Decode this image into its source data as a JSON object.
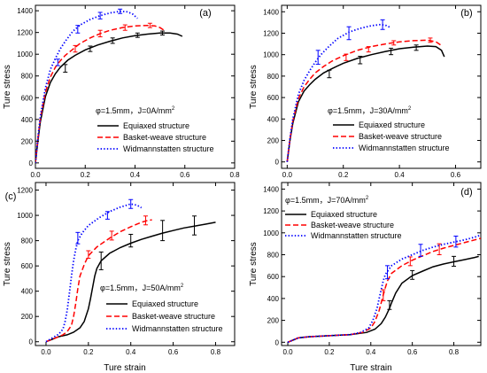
{
  "figure": {
    "x_axis_title": "Ture strain",
    "y_axis_title": "Ture stress"
  },
  "chart_data": [
    {
      "type": "line",
      "panel_label": "(a)",
      "condition": {
        "text": "φ=1.5mm，J=0A/mm",
        "sup": "2"
      },
      "xlim": [
        0,
        0.8
      ],
      "ylim": [
        -50,
        1450
      ],
      "xticks": [
        0.0,
        0.2,
        0.4,
        0.6,
        0.8
      ],
      "yticks": [
        0,
        200,
        400,
        600,
        800,
        1000,
        1200,
        1400
      ],
      "xtick_labels": [
        "0.0",
        "0.2",
        "0.4",
        "0.6",
        "0.8"
      ],
      "ytick_labels": [
        "0",
        "200",
        "400",
        "600",
        "800",
        "1000",
        "1200",
        "1400"
      ],
      "xlabel": "",
      "ylabel": "Ture stress",
      "legend_position": "lower-right",
      "series": [
        {
          "name": "Equiaxed structure",
          "color": "#000000",
          "dash": "solid",
          "x": [
            0,
            0.01,
            0.02,
            0.04,
            0.06,
            0.08,
            0.1,
            0.13,
            0.16,
            0.2,
            0.25,
            0.3,
            0.35,
            0.4,
            0.45,
            0.5,
            0.54,
            0.57,
            0.59
          ],
          "y": [
            0,
            200,
            380,
            610,
            740,
            820,
            880,
            945,
            990,
            1040,
            1085,
            1120,
            1150,
            1170,
            1185,
            1195,
            1195,
            1185,
            1165
          ],
          "errorbars": [
            {
              "x": 0.12,
              "y": 870,
              "err": 35
            },
            {
              "x": 0.22,
              "y": 1050,
              "err": 25
            },
            {
              "x": 0.31,
              "y": 1125,
              "err": 25
            },
            {
              "x": 0.41,
              "y": 1175,
              "err": 20
            },
            {
              "x": 0.51,
              "y": 1195,
              "err": 18
            }
          ]
        },
        {
          "name": "Basket-weave structure",
          "color": "#ff0000",
          "dash": "dashed",
          "x": [
            0,
            0.01,
            0.02,
            0.04,
            0.06,
            0.08,
            0.1,
            0.12,
            0.15,
            0.18,
            0.22,
            0.26,
            0.3,
            0.35,
            0.4,
            0.45,
            0.48,
            0.5,
            0.52
          ],
          "y": [
            0,
            220,
            410,
            650,
            790,
            880,
            940,
            990,
            1045,
            1100,
            1150,
            1190,
            1220,
            1245,
            1260,
            1265,
            1260,
            1245,
            1215
          ],
          "errorbars": [
            {
              "x": 0.16,
              "y": 1050,
              "err": 30
            },
            {
              "x": 0.26,
              "y": 1190,
              "err": 30
            },
            {
              "x": 0.36,
              "y": 1245,
              "err": 25
            },
            {
              "x": 0.46,
              "y": 1265,
              "err": 20
            }
          ]
        },
        {
          "name": "Widmannstatten structure",
          "color": "#0000ff",
          "dash": "dotted",
          "x": [
            0,
            0.01,
            0.02,
            0.04,
            0.06,
            0.08,
            0.1,
            0.12,
            0.15,
            0.18,
            0.22,
            0.26,
            0.3,
            0.34,
            0.37,
            0.39,
            0.41
          ],
          "y": [
            0,
            230,
            430,
            690,
            860,
            960,
            1050,
            1120,
            1210,
            1270,
            1320,
            1355,
            1380,
            1395,
            1390,
            1370,
            1330
          ],
          "errorbars": [
            {
              "x": 0.09,
              "y": 925,
              "err": 30
            },
            {
              "x": 0.17,
              "y": 1230,
              "err": 35
            },
            {
              "x": 0.26,
              "y": 1355,
              "err": 30
            },
            {
              "x": 0.34,
              "y": 1395,
              "err": 20
            }
          ]
        }
      ]
    },
    {
      "type": "line",
      "panel_label": "(b)",
      "condition": {
        "text": "φ=1.5mm，J=30A/mm",
        "sup": "2"
      },
      "xlim": [
        -0.02,
        0.69
      ],
      "ylim": [
        -60,
        1460
      ],
      "xticks": [
        0.0,
        0.2,
        0.4,
        0.6
      ],
      "yticks": [
        0,
        200,
        400,
        600,
        800,
        1000,
        1200,
        1400
      ],
      "xtick_labels": [
        "0.0",
        "0.2",
        "0.4",
        "0.6"
      ],
      "ytick_labels": [
        "0",
        "200",
        "400",
        "600",
        "800",
        "1000",
        "1200",
        "1400"
      ],
      "xlabel": "",
      "ylabel": "Ture stress",
      "legend_position": "lower-right",
      "series": [
        {
          "name": "Equiaxed structure",
          "color": "#000000",
          "dash": "solid",
          "x": [
            0,
            0.01,
            0.02,
            0.04,
            0.06,
            0.08,
            0.1,
            0.13,
            0.16,
            0.2,
            0.25,
            0.3,
            0.35,
            0.4,
            0.45,
            0.5,
            0.53,
            0.55,
            0.56
          ],
          "y": [
            0,
            200,
            360,
            560,
            660,
            720,
            770,
            830,
            870,
            920,
            965,
            1000,
            1030,
            1055,
            1070,
            1080,
            1075,
            1040,
            980
          ],
          "errorbars": [
            {
              "x": 0.15,
              "y": 820,
              "err": 35
            },
            {
              "x": 0.26,
              "y": 950,
              "err": 35
            },
            {
              "x": 0.37,
              "y": 1030,
              "err": 30
            },
            {
              "x": 0.46,
              "y": 1065,
              "err": 25
            }
          ]
        },
        {
          "name": "Basket-weave structure",
          "color": "#ff0000",
          "dash": "dashed",
          "x": [
            0,
            0.01,
            0.02,
            0.04,
            0.06,
            0.08,
            0.1,
            0.13,
            0.16,
            0.2,
            0.25,
            0.3,
            0.35,
            0.4,
            0.45,
            0.5,
            0.53,
            0.55
          ],
          "y": [
            0,
            210,
            380,
            590,
            700,
            770,
            830,
            890,
            940,
            990,
            1040,
            1075,
            1100,
            1120,
            1130,
            1135,
            1120,
            1085
          ],
          "errorbars": [
            {
              "x": 0.21,
              "y": 975,
              "err": 30
            },
            {
              "x": 0.29,
              "y": 1050,
              "err": 25
            },
            {
              "x": 0.38,
              "y": 1110,
              "err": 20
            },
            {
              "x": 0.51,
              "y": 1135,
              "err": 20
            }
          ]
        },
        {
          "name": "Widmannstatten structure",
          "color": "#0000ff",
          "dash": "dotted",
          "x": [
            0,
            0.01,
            0.02,
            0.04,
            0.06,
            0.08,
            0.1,
            0.12,
            0.15,
            0.18,
            0.22,
            0.26,
            0.3,
            0.33,
            0.35,
            0.37
          ],
          "y": [
            0,
            220,
            400,
            630,
            760,
            850,
            930,
            1000,
            1080,
            1150,
            1210,
            1245,
            1270,
            1280,
            1275,
            1250
          ],
          "errorbars": [
            {
              "x": 0.11,
              "y": 975,
              "err": 65
            },
            {
              "x": 0.22,
              "y": 1200,
              "err": 60
            },
            {
              "x": 0.34,
              "y": 1280,
              "err": 45
            }
          ]
        }
      ]
    },
    {
      "type": "line",
      "panel_label": "(c)",
      "condition": {
        "text": "φ=1.5mm，J=50A/mm",
        "sup": "2"
      },
      "xlim": [
        -0.05,
        0.89
      ],
      "ylim": [
        -30,
        1260
      ],
      "xticks": [
        0.0,
        0.2,
        0.4,
        0.6,
        0.8
      ],
      "yticks": [
        0,
        200,
        400,
        600,
        800,
        1000,
        1200
      ],
      "xtick_labels": [
        "0.0",
        "0.2",
        "0.4",
        "0.6",
        "0.8"
      ],
      "ytick_labels": [
        "0",
        "200",
        "400",
        "600",
        "800",
        "1000",
        "1200"
      ],
      "xlabel": "",
      "ylabel": "Ture stress",
      "legend_position": "lower-right",
      "series": [
        {
          "name": "Equiaxed structure",
          "color": "#000000",
          "dash": "solid",
          "x": [
            0,
            0.03,
            0.06,
            0.1,
            0.13,
            0.16,
            0.18,
            0.2,
            0.21,
            0.22,
            0.23,
            0.24,
            0.26,
            0.3,
            0.35,
            0.4,
            0.45,
            0.5,
            0.55,
            0.6,
            0.65,
            0.7,
            0.75,
            0.8
          ],
          "y": [
            0,
            20,
            40,
            55,
            75,
            110,
            160,
            260,
            340,
            430,
            520,
            580,
            640,
            700,
            745,
            780,
            810,
            835,
            860,
            880,
            900,
            915,
            930,
            945
          ],
          "errorbars": [
            {
              "x": 0.26,
              "y": 640,
              "err": 70
            },
            {
              "x": 0.4,
              "y": 800,
              "err": 50
            },
            {
              "x": 0.55,
              "y": 880,
              "err": 80
            },
            {
              "x": 0.7,
              "y": 920,
              "err": 75
            }
          ]
        },
        {
          "name": "Basket-weave structure",
          "color": "#ff0000",
          "dash": "dashed",
          "x": [
            0,
            0.03,
            0.06,
            0.08,
            0.1,
            0.12,
            0.13,
            0.14,
            0.15,
            0.16,
            0.18,
            0.2,
            0.24,
            0.3,
            0.35,
            0.4,
            0.45,
            0.48,
            0.5
          ],
          "y": [
            0,
            20,
            40,
            55,
            80,
            130,
            200,
            300,
            420,
            520,
            610,
            680,
            750,
            820,
            870,
            910,
            945,
            960,
            965
          ],
          "errorbars": [
            {
              "x": 0.2,
              "y": 690,
              "err": 30
            },
            {
              "x": 0.31,
              "y": 840,
              "err": 35
            },
            {
              "x": 0.47,
              "y": 960,
              "err": 35
            }
          ]
        },
        {
          "name": "Widmannstatten structure",
          "color": "#0000ff",
          "dash": "dotted",
          "x": [
            0,
            0.03,
            0.06,
            0.08,
            0.09,
            0.1,
            0.11,
            0.12,
            0.13,
            0.14,
            0.15,
            0.17,
            0.2,
            0.25,
            0.3,
            0.35,
            0.4,
            0.43,
            0.45
          ],
          "y": [
            0,
            30,
            60,
            100,
            160,
            250,
            380,
            520,
            640,
            730,
            800,
            860,
            920,
            980,
            1030,
            1065,
            1090,
            1080,
            1060
          ],
          "errorbars": [
            {
              "x": 0.15,
              "y": 820,
              "err": 45
            },
            {
              "x": 0.29,
              "y": 1000,
              "err": 30
            },
            {
              "x": 0.4,
              "y": 1090,
              "err": 35
            }
          ]
        }
      ]
    },
    {
      "type": "line",
      "panel_label": "(d)",
      "condition": {
        "text": "φ=1.5mm，J=70A/mm",
        "sup": "2"
      },
      "xlim": [
        -0.03,
        0.93
      ],
      "ylim": [
        -30,
        1460
      ],
      "xticks": [
        0.0,
        0.2,
        0.4,
        0.6,
        0.8
      ],
      "yticks": [
        0,
        200,
        400,
        600,
        800,
        1000,
        1200,
        1400
      ],
      "xtick_labels": [
        "0.0",
        "0.2",
        "0.4",
        "0.6",
        "0.8"
      ],
      "ytick_labels": [
        "0",
        "200",
        "400",
        "600",
        "800",
        "1000",
        "1200",
        "1400"
      ],
      "xlabel": "Ture strain",
      "ylabel": "Ture stress",
      "legend_position": "upper-left",
      "series": [
        {
          "name": "Equiaxed structure",
          "color": "#000000",
          "dash": "solid",
          "x": [
            0,
            0.05,
            0.1,
            0.2,
            0.3,
            0.38,
            0.42,
            0.45,
            0.47,
            0.49,
            0.5,
            0.52,
            0.55,
            0.6,
            0.65,
            0.7,
            0.75,
            0.8,
            0.85,
            0.9,
            0.92
          ],
          "y": [
            0,
            40,
            50,
            60,
            70,
            90,
            120,
            170,
            230,
            310,
            360,
            450,
            540,
            610,
            650,
            690,
            715,
            735,
            755,
            775,
            785
          ],
          "errorbars": [
            {
              "x": 0.49,
              "y": 340,
              "err": 40
            },
            {
              "x": 0.6,
              "y": 615,
              "err": 40
            },
            {
              "x": 0.8,
              "y": 740,
              "err": 45
            }
          ]
        },
        {
          "name": "Basket-weave structure",
          "color": "#ff0000",
          "dash": "dashed",
          "x": [
            0,
            0.05,
            0.1,
            0.2,
            0.3,
            0.36,
            0.4,
            0.42,
            0.44,
            0.45,
            0.46,
            0.47,
            0.48,
            0.5,
            0.55,
            0.6,
            0.65,
            0.7,
            0.75,
            0.8,
            0.85,
            0.9,
            0.93
          ],
          "y": [
            0,
            40,
            50,
            60,
            70,
            90,
            130,
            190,
            290,
            360,
            430,
            500,
            560,
            630,
            700,
            750,
            790,
            830,
            860,
            885,
            910,
            935,
            950
          ],
          "errorbars": [
            {
              "x": 0.46,
              "y": 430,
              "err": 50
            },
            {
              "x": 0.59,
              "y": 740,
              "err": 40
            },
            {
              "x": 0.73,
              "y": 850,
              "err": 50
            }
          ]
        },
        {
          "name": "Widmannstatten structure",
          "color": "#0000ff",
          "dash": "dotted",
          "x": [
            0,
            0.05,
            0.1,
            0.2,
            0.3,
            0.35,
            0.39,
            0.41,
            0.43,
            0.44,
            0.45,
            0.46,
            0.47,
            0.5,
            0.55,
            0.6,
            0.65,
            0.7,
            0.75,
            0.8,
            0.85,
            0.9,
            0.93
          ],
          "y": [
            0,
            40,
            50,
            60,
            70,
            90,
            130,
            200,
            310,
            400,
            480,
            560,
            620,
            700,
            760,
            800,
            840,
            870,
            895,
            915,
            935,
            960,
            980
          ],
          "errorbars": [
            {
              "x": 0.48,
              "y": 640,
              "err": 60
            },
            {
              "x": 0.64,
              "y": 840,
              "err": 55
            },
            {
              "x": 0.81,
              "y": 920,
              "err": 50
            }
          ]
        }
      ]
    }
  ]
}
